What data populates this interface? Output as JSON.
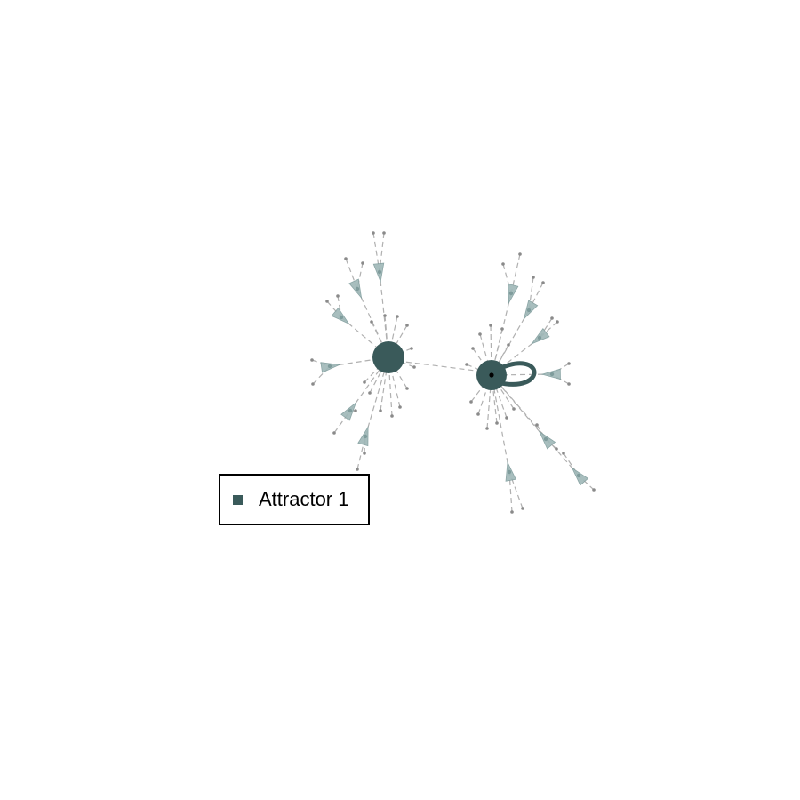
{
  "legend": {
    "entries": [
      {
        "label": "Attractor 1",
        "color": "#3a5a5a"
      }
    ]
  },
  "colors": {
    "node_dark": "#3a5a5a",
    "node_light": "#9fb8b8",
    "edge": "#b0b0b0",
    "leaf": "#8a8a8a",
    "attractor_dot": "#000000"
  }
}
